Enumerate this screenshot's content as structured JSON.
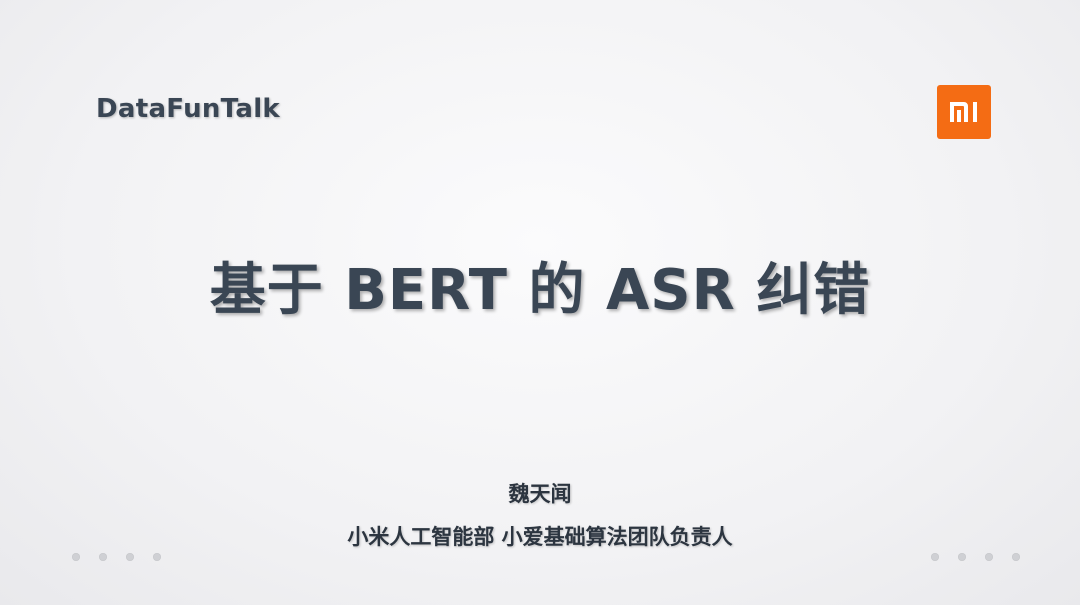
{
  "header": {
    "brand": "DataFunTalk",
    "logo_icon": "xiaomi-mi-logo",
    "logo_color": "#f46c14"
  },
  "main": {
    "title": "基于 BERT 的 ASR 纠错",
    "author": "魏天闻",
    "affiliation": "小米人工智能部 小爱基础算法团队负责人"
  },
  "decor": {
    "text_color": "#3a4654",
    "dot_color": "#cfd0d4"
  }
}
